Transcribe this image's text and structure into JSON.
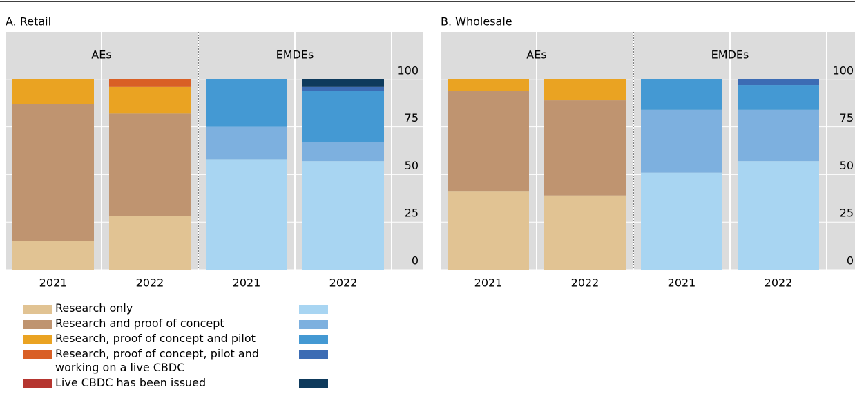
{
  "legend": [
    {
      "name": "Research only",
      "colors": [
        "#e1c393",
        "#a8d5f2"
      ]
    },
    {
      "name": "Research and proof of concept",
      "colors": [
        "#bf9470",
        "#7db0df"
      ]
    },
    {
      "name": "Research, proof of concept and pilot",
      "colors": [
        "#eaa322",
        "#4499d3"
      ]
    },
    {
      "name": "Research, proof of concept, pilot and working on a live CBDC",
      "colors": [
        "#d95f25",
        "#3c6cb4"
      ]
    },
    {
      "name": "Live CBDC has been issued",
      "colors": [
        "#b5352f",
        "#0e3a5c"
      ]
    }
  ],
  "chart_data": [
    {
      "type": "bar",
      "title": "A. Retail",
      "groups": [
        "AEs",
        "EMDEs"
      ],
      "categories": [
        "2021",
        "2022",
        "2021",
        "2022"
      ],
      "series": [
        {
          "values": [
            15,
            28,
            58,
            57
          ]
        },
        {
          "values": [
            72,
            54,
            17,
            10
          ]
        },
        {
          "values": [
            13,
            14,
            25,
            27
          ]
        },
        {
          "values": [
            0,
            4,
            0,
            2
          ]
        },
        {
          "values": [
            0,
            0,
            0,
            4
          ]
        }
      ],
      "ylim": [
        0,
        125
      ],
      "yticks": [
        0,
        25,
        50,
        75,
        100
      ],
      "grid": true
    },
    {
      "type": "bar",
      "title": "B. Wholesale",
      "groups": [
        "AEs",
        "EMDEs"
      ],
      "categories": [
        "2021",
        "2022",
        "2021",
        "2022"
      ],
      "series": [
        {
          "values": [
            41,
            39,
            51,
            57
          ]
        },
        {
          "values": [
            53,
            50,
            33,
            27
          ]
        },
        {
          "values": [
            6,
            11,
            16,
            13
          ]
        },
        {
          "values": [
            0,
            0,
            0,
            3
          ]
        },
        {
          "values": [
            0,
            0,
            0,
            0
          ]
        }
      ],
      "ylim": [
        0,
        125
      ],
      "yticks": [
        0,
        25,
        50,
        75,
        100
      ],
      "grid": true
    }
  ]
}
